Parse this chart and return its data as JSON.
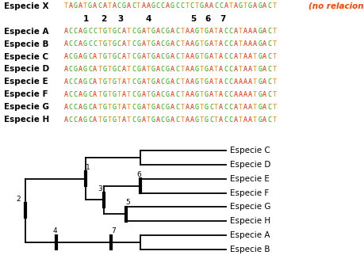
{
  "bg_color": "#ffffff",
  "outgroup_label": "Especie X",
  "outgroup_seq": "TAGATGACATACGACTAAGCCAGCCTCTGAACCATAGTGAGACT",
  "outgroup_note": "(no relacionada)",
  "species_order_seq": [
    "A",
    "B",
    "C",
    "D",
    "E",
    "F",
    "G",
    "H"
  ],
  "sequences": {
    "A": "ACCAGCCTGTGCATCGATGACGACTAAGTGATACCATAAAGACT",
    "B": "ACCAGCCTGTGCATCGATGACGACTAAGTGATACCATAAAGACT",
    "C": "ACGAGCATGTGCATCGATGACGACTAAGTGATACCATAATGACT",
    "D": "ACGAGCATGTGCATCGATGACGACTAAGTGATACCATAATGACT",
    "E": "ACCAGCATGTGTATCGATGACGACTAAGTGATACCAAAATGACT",
    "F": "ACCAGCATGTGTATCGATGACGACTAAGTGATACCAAAATGACT",
    "G": "ACCAGCATGTGTATCGATGACGACTAAGTGCTACCATAATGACT",
    "H": "ACCAGCATGTGTATCGATGACGACTAAGTGCTACCATAATGACT"
  },
  "site_labels": [
    "1",
    "2",
    "3",
    "4",
    "5",
    "6",
    "7"
  ],
  "tree_leaves": [
    "C",
    "D",
    "E",
    "F",
    "G",
    "H",
    "A",
    "B"
  ],
  "label_fontsize": 7.5,
  "seq_fontsize": 6.0,
  "note_color": "#ff4500",
  "tick_lw": 3.0,
  "branch_lw": 1.3
}
